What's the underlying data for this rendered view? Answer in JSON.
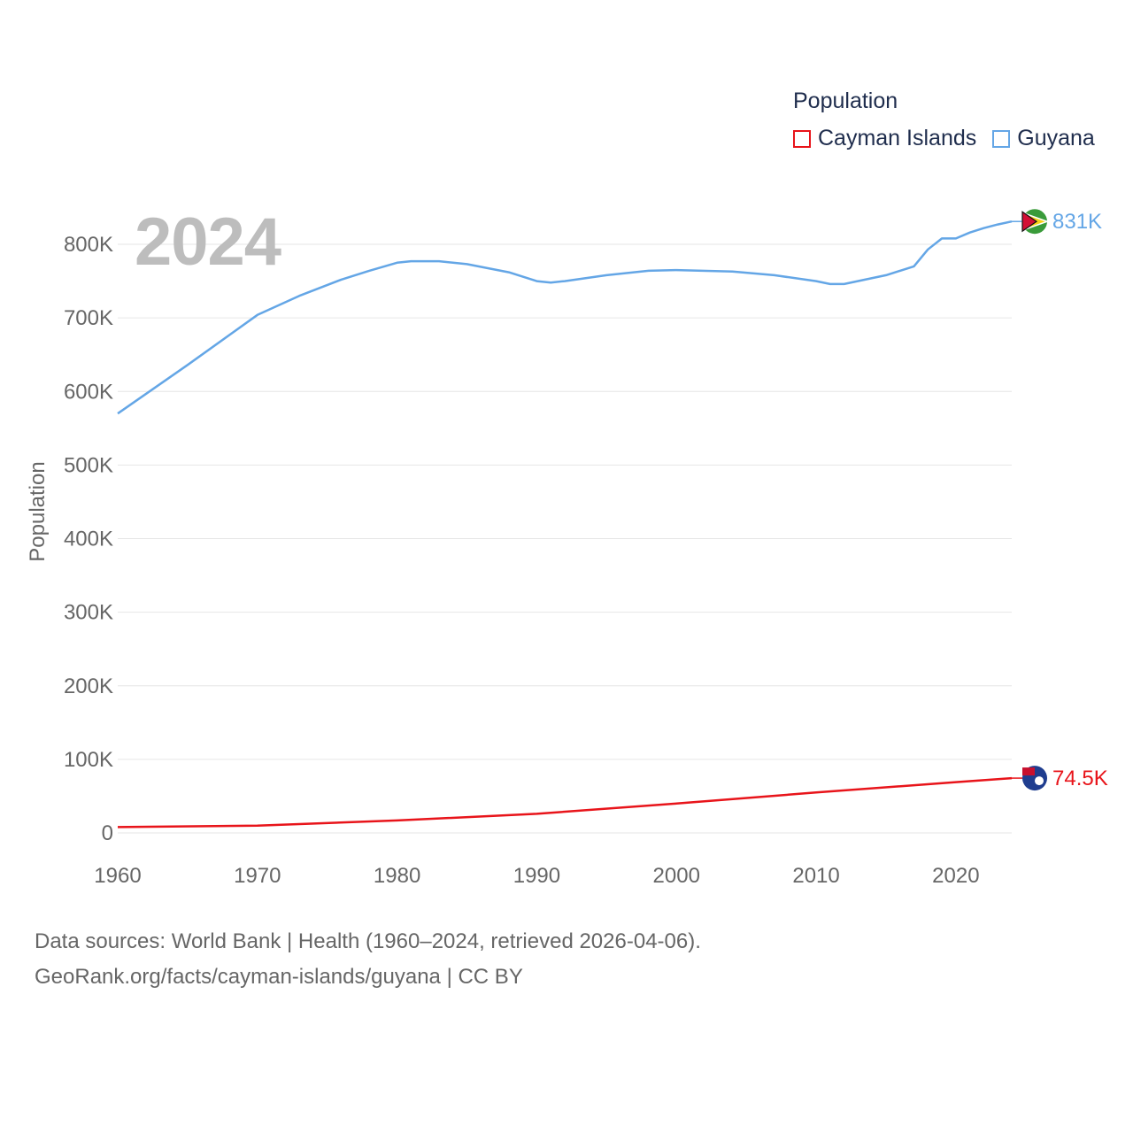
{
  "legend": {
    "title": "Population",
    "items": [
      {
        "label": "Cayman Islands",
        "color": "#e8141a"
      },
      {
        "label": "Guyana",
        "color": "#64a6e6"
      }
    ]
  },
  "year_label": "2024",
  "footer": {
    "line1": "Data sources: World Bank | Health (1960–2024, retrieved 2026-04-06).",
    "line2": "GeoRank.org/facts/cayman-islands/guyana | CC BY"
  },
  "chart_data": {
    "type": "line",
    "title": "Population",
    "xlabel": "",
    "ylabel": "Population",
    "xlim": [
      1960,
      2024
    ],
    "ylim": [
      0,
      800000
    ],
    "x_ticks": [
      1960,
      1970,
      1980,
      1990,
      2000,
      2010,
      2020
    ],
    "x_tick_labels": [
      "1960",
      "1970",
      "1980",
      "1990",
      "2000",
      "2010",
      "2020"
    ],
    "y_ticks": [
      0,
      100000,
      200000,
      300000,
      400000,
      500000,
      600000,
      700000,
      800000
    ],
    "y_tick_labels": [
      "0",
      "100K",
      "200K",
      "300K",
      "400K",
      "500K",
      "600K",
      "700K",
      "800K"
    ],
    "grid": true,
    "legend_position": "top-right",
    "series": [
      {
        "name": "Cayman Islands",
        "color": "#e8141a",
        "end_label": "74.5K",
        "points": [
          [
            1960,
            8000
          ],
          [
            1970,
            10000
          ],
          [
            1980,
            17000
          ],
          [
            1990,
            26000
          ],
          [
            2000,
            40000
          ],
          [
            2010,
            55000
          ],
          [
            2020,
            69000
          ],
          [
            2024,
            74500
          ]
        ]
      },
      {
        "name": "Guyana",
        "color": "#64a6e6",
        "end_label": "831K",
        "points": [
          [
            1960,
            570000
          ],
          [
            1965,
            636000
          ],
          [
            1970,
            704000
          ],
          [
            1973,
            730000
          ],
          [
            1976,
            752000
          ],
          [
            1978,
            764000
          ],
          [
            1980,
            775000
          ],
          [
            1981,
            777000
          ],
          [
            1983,
            777000
          ],
          [
            1985,
            773000
          ],
          [
            1988,
            762000
          ],
          [
            1990,
            750000
          ],
          [
            1991,
            748000
          ],
          [
            1992,
            750000
          ],
          [
            1995,
            758000
          ],
          [
            1998,
            764000
          ],
          [
            2000,
            765000
          ],
          [
            2004,
            763000
          ],
          [
            2007,
            758000
          ],
          [
            2010,
            750000
          ],
          [
            2011,
            746000
          ],
          [
            2012,
            746000
          ],
          [
            2015,
            758000
          ],
          [
            2017,
            770000
          ],
          [
            2018,
            793000
          ],
          [
            2019,
            808000
          ],
          [
            2020,
            808000
          ],
          [
            2021,
            816000
          ],
          [
            2022,
            822000
          ],
          [
            2023,
            827000
          ],
          [
            2024,
            831000
          ]
        ]
      }
    ]
  }
}
